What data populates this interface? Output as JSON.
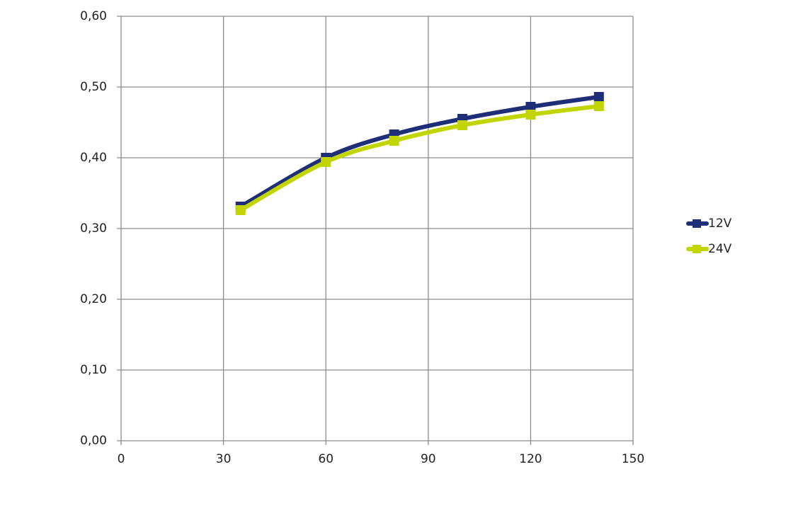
{
  "chart_data": {
    "type": "line",
    "x": [
      35,
      60,
      80,
      100,
      120,
      140
    ],
    "series": [
      {
        "name": "12V",
        "color": "#1e2f78",
        "values": [
          0.331,
          0.4,
          0.433,
          0.455,
          0.472,
          0.486
        ]
      },
      {
        "name": "24V",
        "color": "#c3d500",
        "values": [
          0.326,
          0.394,
          0.424,
          0.446,
          0.461,
          0.473
        ]
      }
    ],
    "xlim": [
      0,
      150
    ],
    "xticks": [
      0,
      30,
      60,
      90,
      120,
      150
    ],
    "ylim": [
      0,
      0.6
    ],
    "yticks": [
      {
        "value": 0,
        "label": "0,00"
      },
      {
        "value": 0.1,
        "label": "0,10"
      },
      {
        "value": 0.2,
        "label": "0,20"
      },
      {
        "value": 0.3,
        "label": "0,30"
      },
      {
        "value": 0.4,
        "label": "0,40"
      },
      {
        "value": 0.5,
        "label": "0,50"
      },
      {
        "value": 0.6,
        "label": "0,60"
      }
    ],
    "grid": true,
    "legend": "right"
  }
}
